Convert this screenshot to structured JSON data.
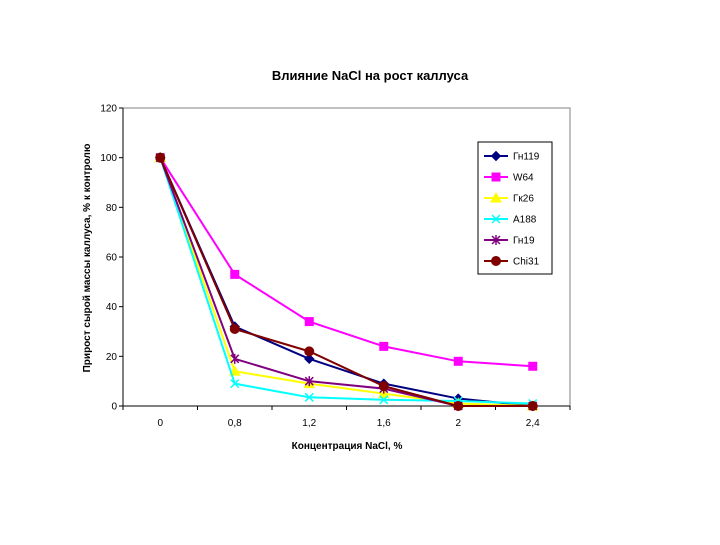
{
  "chart_data": {
    "type": "line",
    "title": "Влияние NaCl на рост каллуса",
    "xlabel": "Концентрация NaCl, %",
    "ylabel": "Прирост сырой массы каллуса, % к контролю",
    "categories": [
      "0",
      "0,8",
      "1,2",
      "1,6",
      "2",
      "2,4"
    ],
    "ylim": [
      0,
      120
    ],
    "yticks": [
      "0",
      "20",
      "40",
      "60",
      "80",
      "100",
      "120"
    ],
    "grid": false,
    "legend_position": "right",
    "series": [
      {
        "name": "Гн119",
        "color": "#000080",
        "marker": "diamond",
        "values": [
          100,
          32,
          19,
          9,
          3,
          0
        ]
      },
      {
        "name": "W64",
        "color": "#ff00ff",
        "marker": "square",
        "values": [
          100,
          53,
          34,
          24,
          18,
          16
        ]
      },
      {
        "name": "Гк26",
        "color": "#ffff00",
        "marker": "triangle",
        "values": [
          100,
          14,
          9,
          5,
          1,
          0
        ]
      },
      {
        "name": "A188",
        "color": "#00ffff",
        "marker": "x",
        "values": [
          100,
          9,
          3.5,
          2.5,
          2,
          1
        ]
      },
      {
        "name": "Гн19",
        "color": "#800080",
        "marker": "star",
        "values": [
          100,
          19,
          10,
          7,
          0,
          0
        ]
      },
      {
        "name": "Chi31",
        "color": "#800000",
        "marker": "circle",
        "values": [
          100,
          31,
          22,
          8,
          0,
          0
        ]
      }
    ]
  }
}
